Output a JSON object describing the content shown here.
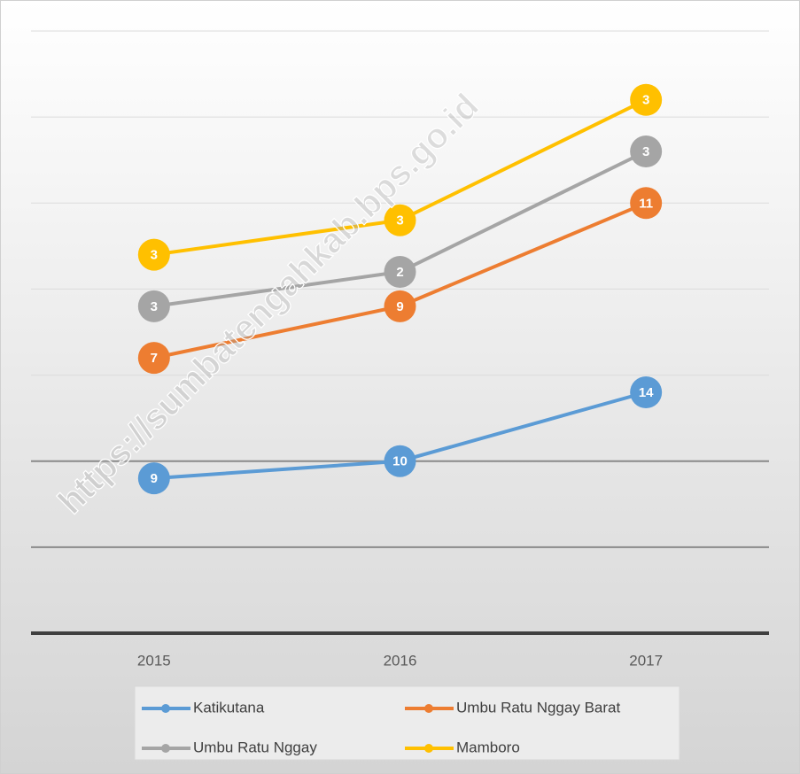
{
  "chart_data": {
    "type": "line",
    "stacked": true,
    "watermark": "https://sumbatengahkab.bps.go.id",
    "categories": [
      "2015",
      "2016",
      "2017"
    ],
    "series": [
      {
        "name": "Katikutana",
        "color": "#5b9bd5",
        "values": [
          9,
          10,
          14
        ]
      },
      {
        "name": "Umbu Ratu Nggay Barat",
        "color": "#ed7d31",
        "values": [
          7,
          9,
          11
        ]
      },
      {
        "name": "Umbu Ratu Nggay",
        "color": "#a5a5a5",
        "values": [
          3,
          2,
          3
        ]
      },
      {
        "name": "Mamboro",
        "color": "#ffc000",
        "values": [
          3,
          3,
          3
        ]
      }
    ],
    "ylim": [
      0,
      35
    ],
    "yticks": [
      0,
      5,
      10,
      15,
      20,
      25,
      30,
      35
    ],
    "grid": true,
    "legend": "bottom"
  }
}
